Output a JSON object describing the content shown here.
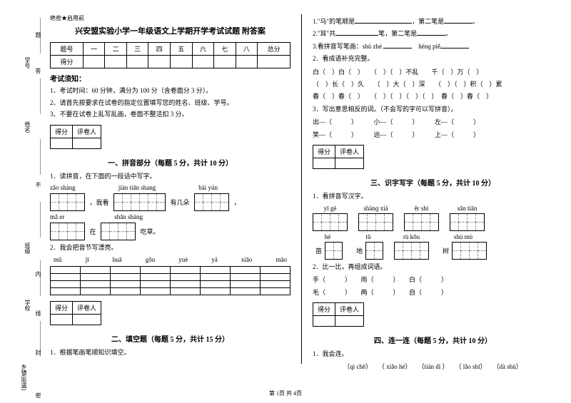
{
  "margin": {
    "xiang": "乡镇(街道)",
    "xuexiao": "学校",
    "banji": "班级",
    "xingming": "姓名",
    "xuehao": "学号",
    "nei": "内",
    "xian": "线",
    "da": "答",
    "ti": "题",
    "feng": "封",
    "mi": "密"
  },
  "secret": "绝密★启用前",
  "title": "兴安盟实验小学一年级语文上学期开学考试试题 附答案",
  "score_headers": [
    "题号",
    "一",
    "二",
    "三",
    "四",
    "五",
    "六",
    "七",
    "八",
    "总分"
  ],
  "score_row": "得分",
  "notice_head": "考试须知：",
  "notices": [
    "1、考试时间：60 分钟，满分为 100 分（含卷面分 3 分）。",
    "2、请首先按要求在试卷的指定位置填写您的姓名、班级、学号。",
    "3、不要在试卷上乱写乱画，卷面不整洁扣 3 分。"
  ],
  "scorebox": {
    "a": "得分",
    "b": "评卷人"
  },
  "sec1": "一、拼音部分（每题 5 分，共计 10 分）",
  "q1_1": "1．读拼音，在下面的一段话中写字。",
  "pinyin1": {
    "a": "zǎo shàng",
    "b": "jiàn tiān shang",
    "c": "bái yún"
  },
  "mid1": "，我看",
  "mid2": "有几朵",
  "pinyin2": {
    "a": "mǎ    er",
    "b": "shān shàng"
  },
  "mid3": "在",
  "mid4": "吃草。",
  "q1_2": "2．我会把音节写漂亮。",
  "syllables": [
    "mǔ",
    "jī",
    "huā",
    "gǒu",
    "yuè",
    "yá",
    "xiǎo",
    "māo"
  ],
  "sec2": "二、填空题（每题 5 分，共计 15 分）",
  "q2_1": "1．根据笔画笔顺知识填空。",
  "r1": "1.\"马\"的笔顺是",
  "r1b": "，第二笔是",
  "r2": "2.\"耳\"共",
  "r2b": "笔，第二笔是",
  "r3": "3.看拼音写笔画：shù zhé",
  "r3b": "hénɡ piě",
  "q2_2": "2．看成语补充完整。",
  "idiom1": "白（　）白（　）　　（　）（　）不乱　　千（　）万（　）",
  "idiom2": "（　）长（　）久　　（　）大（　）深　　（　）（　）积（　）累",
  "idiom3": "春（　）春（　）　　（　）（　）（　）（　）　春（　）春（　）",
  "q2_3": "3．写出意思相反的词。（不会写的字可以写拼音）。",
  "opp1": "出—（　　　）　　　小—（　　　）　　　左—（　　　）",
  "opp2": "笑—（　　　）　　　远—（　　　）　　　上—（　　　）",
  "sec3": "三、识字写字（每题 5 分，共计 10 分）",
  "q3_1": "1．看拼音写汉字。",
  "grids1": [
    {
      "py": "yī  gè",
      "ch": ""
    },
    {
      "py": "shànɡ  xià",
      "ch": ""
    },
    {
      "py": "ěr  shí",
      "ch": ""
    },
    {
      "py": "sān tiān",
      "ch": ""
    }
  ],
  "grids2": [
    {
      "py": "hé",
      "ch": "苗"
    },
    {
      "py": "tǔ",
      "ch": "地"
    },
    {
      "py": "rù  kǒu",
      "ch": ""
    },
    {
      "py": "shù  mù",
      "ch": "树"
    }
  ],
  "q3_2": "2．比一比，再组成词语。",
  "cmp1": "手（　　　）　　雨（　　　）　　白（　　　）",
  "cmp2": "毛（　　　）　　两（　　　）　　自（　　　）",
  "sec4": "四、连一连（每题 5 分，共计 10 分）",
  "q4_1": "1．我会连。",
  "q4_items": "（qì chē）　　（ xiǎo hé）　　（tián dì ）　　（ lǎo shī）　　（dà shù）",
  "footer": "第 1页 共 4页"
}
